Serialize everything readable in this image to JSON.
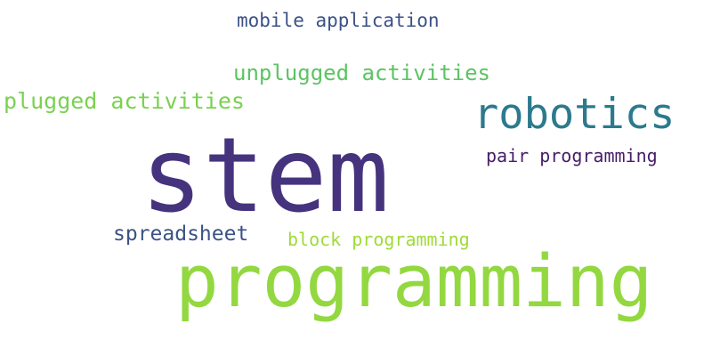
{
  "words": [
    {
      "text": "mobile application",
      "color": "#3b5286"
    },
    {
      "text": "unplugged activities",
      "color": "#5cc463"
    },
    {
      "text": "plugged activities",
      "color": "#7ad151"
    },
    {
      "text": "robotics",
      "color": "#2c7a8c"
    },
    {
      "text": "stem",
      "color": "#46337e"
    },
    {
      "text": "pair programming",
      "color": "#471d66"
    },
    {
      "text": "spreadsheet",
      "color": "#3b5286"
    },
    {
      "text": "block programming",
      "color": "#a0da39"
    },
    {
      "text": "programming",
      "color": "#93d840"
    }
  ]
}
